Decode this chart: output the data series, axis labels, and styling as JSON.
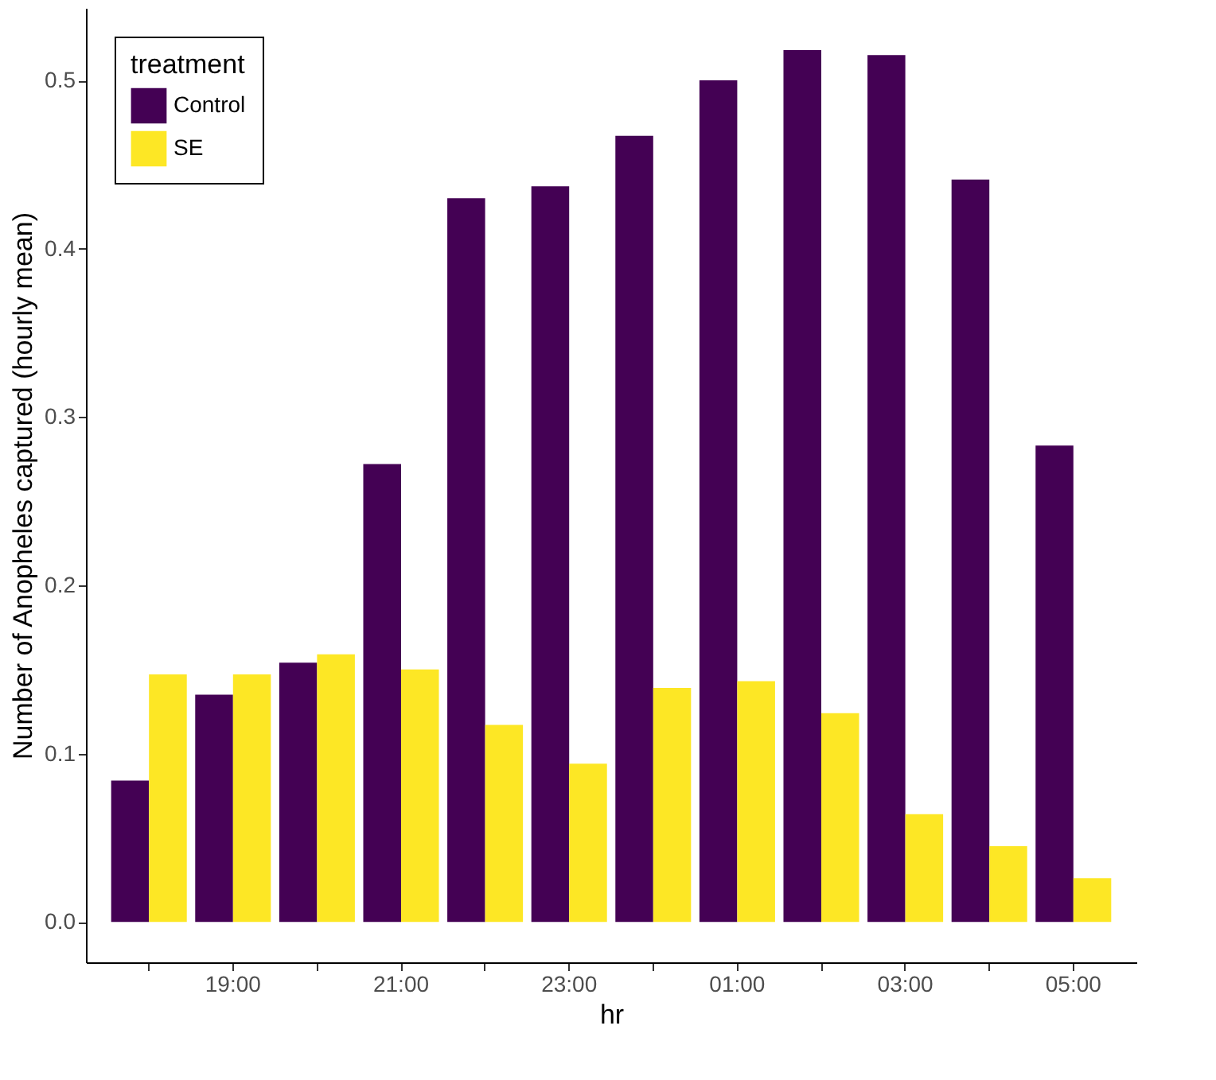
{
  "chart_data": {
    "type": "bar",
    "xlabel": "hr",
    "ylabel": "Number of Anopheles captured (hourly mean)",
    "legend_title": "treatment",
    "legend": "top left",
    "grid": false,
    "categories": [
      null,
      "19:00",
      null,
      "21:00",
      null,
      "23:00",
      null,
      "01:00",
      null,
      "03:00",
      null,
      "05:00"
    ],
    "series": [
      {
        "name": "Control",
        "color": "#440154",
        "values": [
          0.084,
          0.135,
          0.154,
          0.272,
          0.43,
          0.437,
          0.467,
          0.5,
          0.518,
          0.515,
          0.441,
          0.283
        ]
      },
      {
        "name": "SE",
        "color": "#fde725",
        "values": [
          0.147,
          0.147,
          0.159,
          0.15,
          0.117,
          0.094,
          0.139,
          0.143,
          0.124,
          0.064,
          0.045,
          0.026
        ]
      }
    ],
    "ylim": [
      -0.024,
      0.543
    ],
    "yticks": [
      {
        "value": 0,
        "label": "0.0"
      },
      {
        "value": 0.1,
        "label": "0.1"
      },
      {
        "value": 0.2,
        "label": "0.2"
      },
      {
        "value": 0.3,
        "label": "0.3"
      },
      {
        "value": 0.4,
        "label": "0.4"
      },
      {
        "value": 0.5,
        "label": "0.5"
      }
    ]
  }
}
